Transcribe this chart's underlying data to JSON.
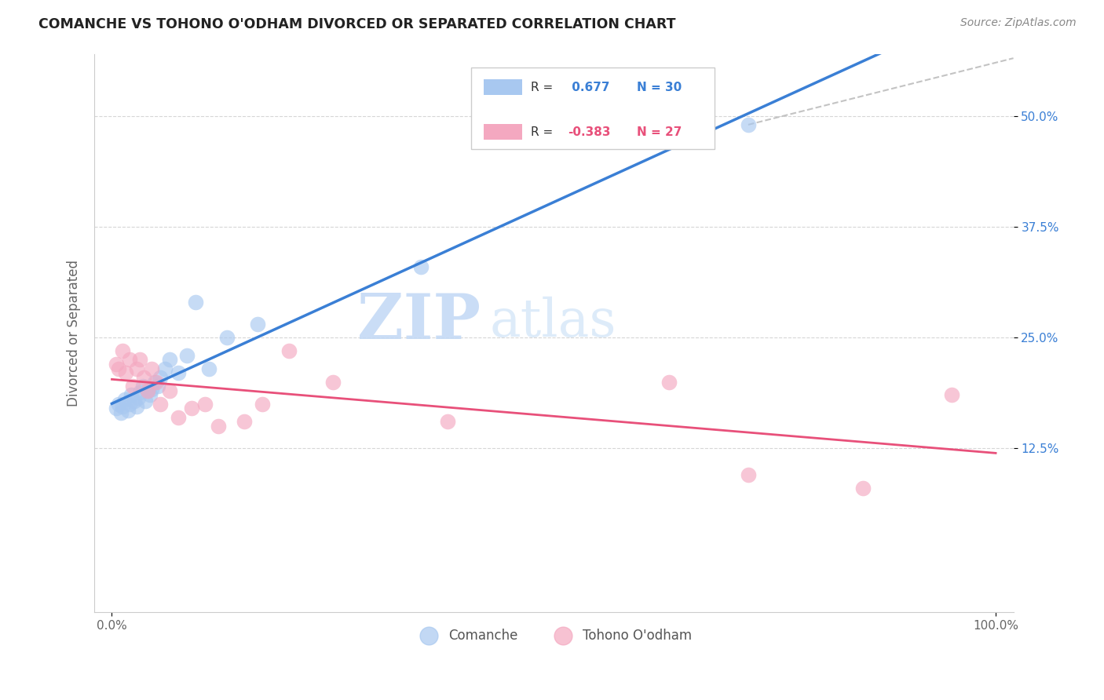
{
  "title": "COMANCHE VS TOHONO O'ODHAM DIVORCED OR SEPARATED CORRELATION CHART",
  "source": "Source: ZipAtlas.com",
  "ylabel": "Divorced or Separated",
  "xlim": [
    -0.02,
    1.02
  ],
  "ylim": [
    -0.06,
    0.57
  ],
  "ytick_labels": [
    "12.5%",
    "25.0%",
    "37.5%",
    "50.0%"
  ],
  "ytick_values": [
    0.125,
    0.25,
    0.375,
    0.5
  ],
  "legend_label1": "Comanche",
  "legend_label2": "Tohono O'odham",
  "R1": 0.677,
  "N1": 30,
  "R2": -0.383,
  "N2": 27,
  "color1": "#a8c8f0",
  "color2": "#f4a8c0",
  "line_color1": "#3a7fd5",
  "line_color2": "#e8507a",
  "watermark_zip": "ZIP",
  "watermark_atlas": "atlas",
  "background_color": "#ffffff",
  "grid_color": "#cccccc",
  "comanche_x": [
    0.005,
    0.008,
    0.01,
    0.012,
    0.015,
    0.018,
    0.02,
    0.022,
    0.025,
    0.028,
    0.03,
    0.032,
    0.035,
    0.038,
    0.04,
    0.043,
    0.045,
    0.048,
    0.052,
    0.055,
    0.06,
    0.065,
    0.075,
    0.085,
    0.095,
    0.11,
    0.13,
    0.165,
    0.35,
    0.72
  ],
  "comanche_y": [
    0.17,
    0.175,
    0.165,
    0.172,
    0.18,
    0.168,
    0.175,
    0.185,
    0.178,
    0.172,
    0.182,
    0.188,
    0.195,
    0.178,
    0.19,
    0.185,
    0.192,
    0.2,
    0.195,
    0.205,
    0.215,
    0.225,
    0.21,
    0.23,
    0.29,
    0.215,
    0.25,
    0.265,
    0.33,
    0.49
  ],
  "tohono_x": [
    0.005,
    0.008,
    0.012,
    0.016,
    0.02,
    0.024,
    0.028,
    0.032,
    0.036,
    0.04,
    0.045,
    0.05,
    0.055,
    0.065,
    0.075,
    0.09,
    0.105,
    0.12,
    0.15,
    0.17,
    0.2,
    0.25,
    0.38,
    0.63,
    0.72,
    0.85,
    0.95
  ],
  "tohono_y": [
    0.22,
    0.215,
    0.235,
    0.21,
    0.225,
    0.195,
    0.215,
    0.225,
    0.205,
    0.19,
    0.215,
    0.2,
    0.175,
    0.19,
    0.16,
    0.17,
    0.175,
    0.15,
    0.155,
    0.175,
    0.235,
    0.2,
    0.155,
    0.2,
    0.095,
    0.08,
    0.185
  ]
}
